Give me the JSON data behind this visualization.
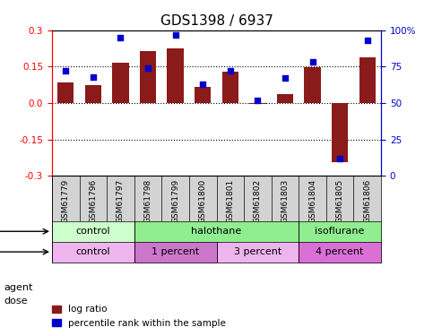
{
  "title": "GDS1398 / 6937",
  "samples": [
    "GSM61779",
    "GSM61796",
    "GSM61797",
    "GSM61798",
    "GSM61799",
    "GSM61800",
    "GSM61801",
    "GSM61802",
    "GSM61803",
    "GSM61804",
    "GSM61805",
    "GSM61806"
  ],
  "log_ratio": [
    0.085,
    0.075,
    0.165,
    0.215,
    0.225,
    0.065,
    0.13,
    -0.005,
    0.035,
    0.148,
    -0.245,
    0.19
  ],
  "percentile_rank": [
    72,
    68,
    95,
    74,
    97,
    63,
    72,
    52,
    67,
    78,
    12,
    93
  ],
  "bar_color": "#8B1A1A",
  "dot_color": "#0000CD",
  "ylim": [
    -0.3,
    0.3
  ],
  "y2lim": [
    0,
    100
  ],
  "yticks": [
    -0.3,
    -0.15,
    0.0,
    0.15,
    0.3
  ],
  "y2ticks": [
    0,
    25,
    50,
    75,
    100
  ],
  "hlines": [
    -0.15,
    0.0,
    0.15
  ],
  "agent_groups": [
    {
      "label": "control",
      "start": 0,
      "end": 3,
      "color": "#90EE90"
    },
    {
      "label": "halothane",
      "start": 3,
      "end": 9,
      "color": "#66CC66"
    },
    {
      "label": "isoflurane",
      "start": 9,
      "end": 12,
      "color": "#66CC66"
    }
  ],
  "dose_groups": [
    {
      "label": "control",
      "start": 0,
      "end": 3,
      "color": "#EE82EE"
    },
    {
      "label": "1 percent",
      "start": 3,
      "end": 6,
      "color": "#DA70D6"
    },
    {
      "label": "3 percent",
      "start": 6,
      "end": 9,
      "color": "#EE82EE"
    },
    {
      "label": "4 percent",
      "start": 9,
      "end": 12,
      "color": "#DA70D6"
    }
  ],
  "legend_bar_label": "log ratio",
  "legend_dot_label": "percentile rank within the sample",
  "agent_label": "agent",
  "dose_label": "dose",
  "background_color": "#FFFFFF",
  "plot_bg_color": "#FFFFFF",
  "tick_label_size": 7,
  "title_fontsize": 11
}
